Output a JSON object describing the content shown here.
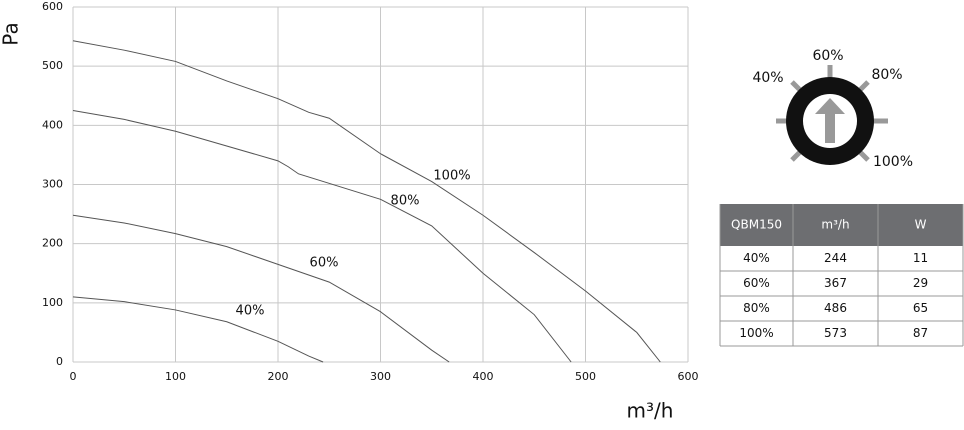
{
  "chart_data": {
    "type": "line",
    "ylabel": "Pa",
    "xlabel": "m³/h",
    "xlim": [
      0,
      600
    ],
    "xticks": [
      0,
      100,
      200,
      300,
      400,
      500,
      600
    ],
    "ylim": [
      0,
      600
    ],
    "yticks": [
      0,
      100,
      200,
      300,
      400,
      500,
      600
    ],
    "grid": true,
    "series": [
      {
        "name": "100%",
        "color": "#555555",
        "x": [
          0,
          50,
          100,
          150,
          200,
          230,
          250,
          300,
          350,
          400,
          450,
          500,
          550,
          573
        ],
        "values": [
          543,
          527,
          508,
          475,
          445,
          422,
          412,
          352,
          305,
          248,
          185,
          120,
          50,
          0
        ]
      },
      {
        "name": "80%",
        "color": "#555555",
        "x": [
          0,
          50,
          100,
          120,
          200,
          210,
          220,
          300,
          350,
          400,
          450,
          486
        ],
        "values": [
          425,
          410,
          390,
          380,
          340,
          330,
          318,
          275,
          230,
          150,
          80,
          0
        ]
      },
      {
        "name": "60%",
        "color": "#555555",
        "x": [
          0,
          50,
          100,
          150,
          200,
          250,
          300,
          350,
          367
        ],
        "values": [
          248,
          235,
          217,
          195,
          165,
          135,
          85,
          20,
          0
        ]
      },
      {
        "name": "40%",
        "color": "#555555",
        "x": [
          0,
          50,
          100,
          150,
          200,
          230,
          244
        ],
        "values": [
          110,
          102,
          88,
          68,
          35,
          10,
          0
        ]
      }
    ]
  },
  "dial": {
    "labels": [
      "40%",
      "60%",
      "80%",
      "100%"
    ]
  },
  "table": {
    "header": [
      "QBM150",
      "m³/h",
      "W"
    ],
    "rows": [
      [
        "40%",
        244,
        11
      ],
      [
        "60%",
        367,
        29
      ],
      [
        "80%",
        486,
        65
      ],
      [
        "100%",
        573,
        87
      ]
    ]
  }
}
